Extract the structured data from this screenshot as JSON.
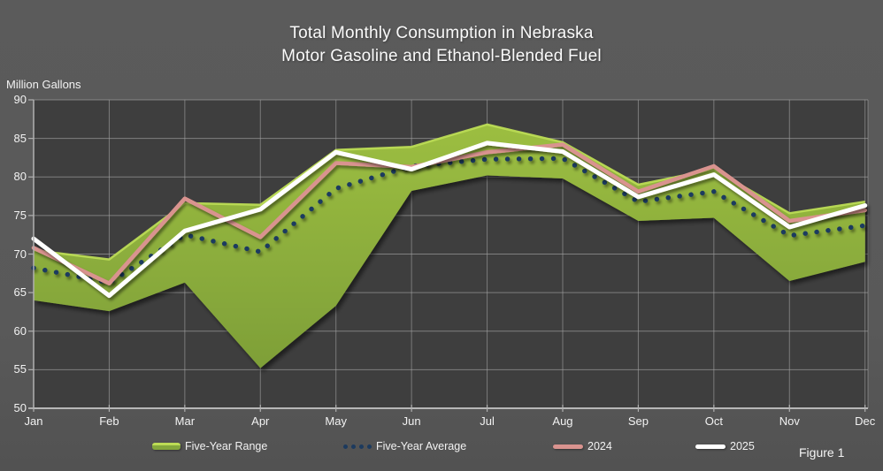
{
  "title": {
    "line1": "Total Monthly Consumption in Nebraska",
    "line2": "Motor Gasoline and Ethanol-Blended Fuel"
  },
  "axis_unit_label": "Million Gallons",
  "figure_label": "Figure 1",
  "colors": {
    "outer_background": "#595959",
    "plot_background": "#3e3e3e",
    "gridline": "#a3a3a3",
    "range_fill_top": "#9cbe41",
    "range_fill_bottom": "#7e9f38",
    "range_highlight_edge": "#bcdc55",
    "five_year_average": "#1c3a5e",
    "line_2024": "#d9938f",
    "line_2025": "#ffffff",
    "text": "#f2f2f2"
  },
  "legend": {
    "items": [
      {
        "label": "Five-Year Range",
        "swatch": "green-band"
      },
      {
        "label": "Five-Year Average",
        "swatch": "navy-dots"
      },
      {
        "label": "2024",
        "swatch": "pink-line"
      },
      {
        "label": "2025",
        "swatch": "white-line"
      }
    ]
  },
  "chart_data": {
    "type": "area",
    "title": "Total Monthly Consumption in Nebraska — Motor Gasoline and Ethanol-Blended Fuel",
    "ylabel": "Million Gallons",
    "ylim": [
      50,
      90
    ],
    "yticks": [
      50,
      55,
      60,
      65,
      70,
      75,
      80,
      85,
      90
    ],
    "grid": true,
    "legend_position": "bottom",
    "categories": [
      "Jan",
      "Feb",
      "Mar",
      "Apr",
      "May",
      "Jun",
      "Jul",
      "Aug",
      "Sep",
      "Oct",
      "Nov",
      "Dec"
    ],
    "series": [
      {
        "name": "Five-Year Range (high)",
        "role": "band-upper",
        "color": "#8caf3e",
        "values": [
          70.5,
          69.3,
          76.6,
          76.4,
          83.5,
          83.9,
          86.8,
          84.5,
          79.0,
          81.0,
          75.3,
          76.8
        ]
      },
      {
        "name": "Five-Year Range (low)",
        "role": "band-lower",
        "color": "#8caf3e",
        "values": [
          64.0,
          62.6,
          66.3,
          55.2,
          63.3,
          78.2,
          80.2,
          79.8,
          74.3,
          74.7,
          66.5,
          69.0
        ]
      },
      {
        "name": "Five-Year Average",
        "role": "dotted-line",
        "color": "#1c3a5e",
        "values": [
          68.2,
          66.3,
          72.5,
          70.3,
          78.5,
          81.4,
          82.3,
          82.4,
          76.8,
          78.1,
          72.4,
          73.7
        ]
      },
      {
        "name": "2024",
        "role": "line",
        "color": "#d9938f",
        "values": [
          70.8,
          66.2,
          77.2,
          72.2,
          81.8,
          81.3,
          83.2,
          84.2,
          78.1,
          81.4,
          74.3,
          75.7
        ]
      },
      {
        "name": "2025",
        "role": "line",
        "color": "#ffffff",
        "values": [
          72.0,
          64.6,
          73.0,
          75.8,
          83.2,
          81.0,
          84.4,
          83.3,
          77.4,
          80.3,
          73.5,
          76.3
        ]
      }
    ]
  }
}
